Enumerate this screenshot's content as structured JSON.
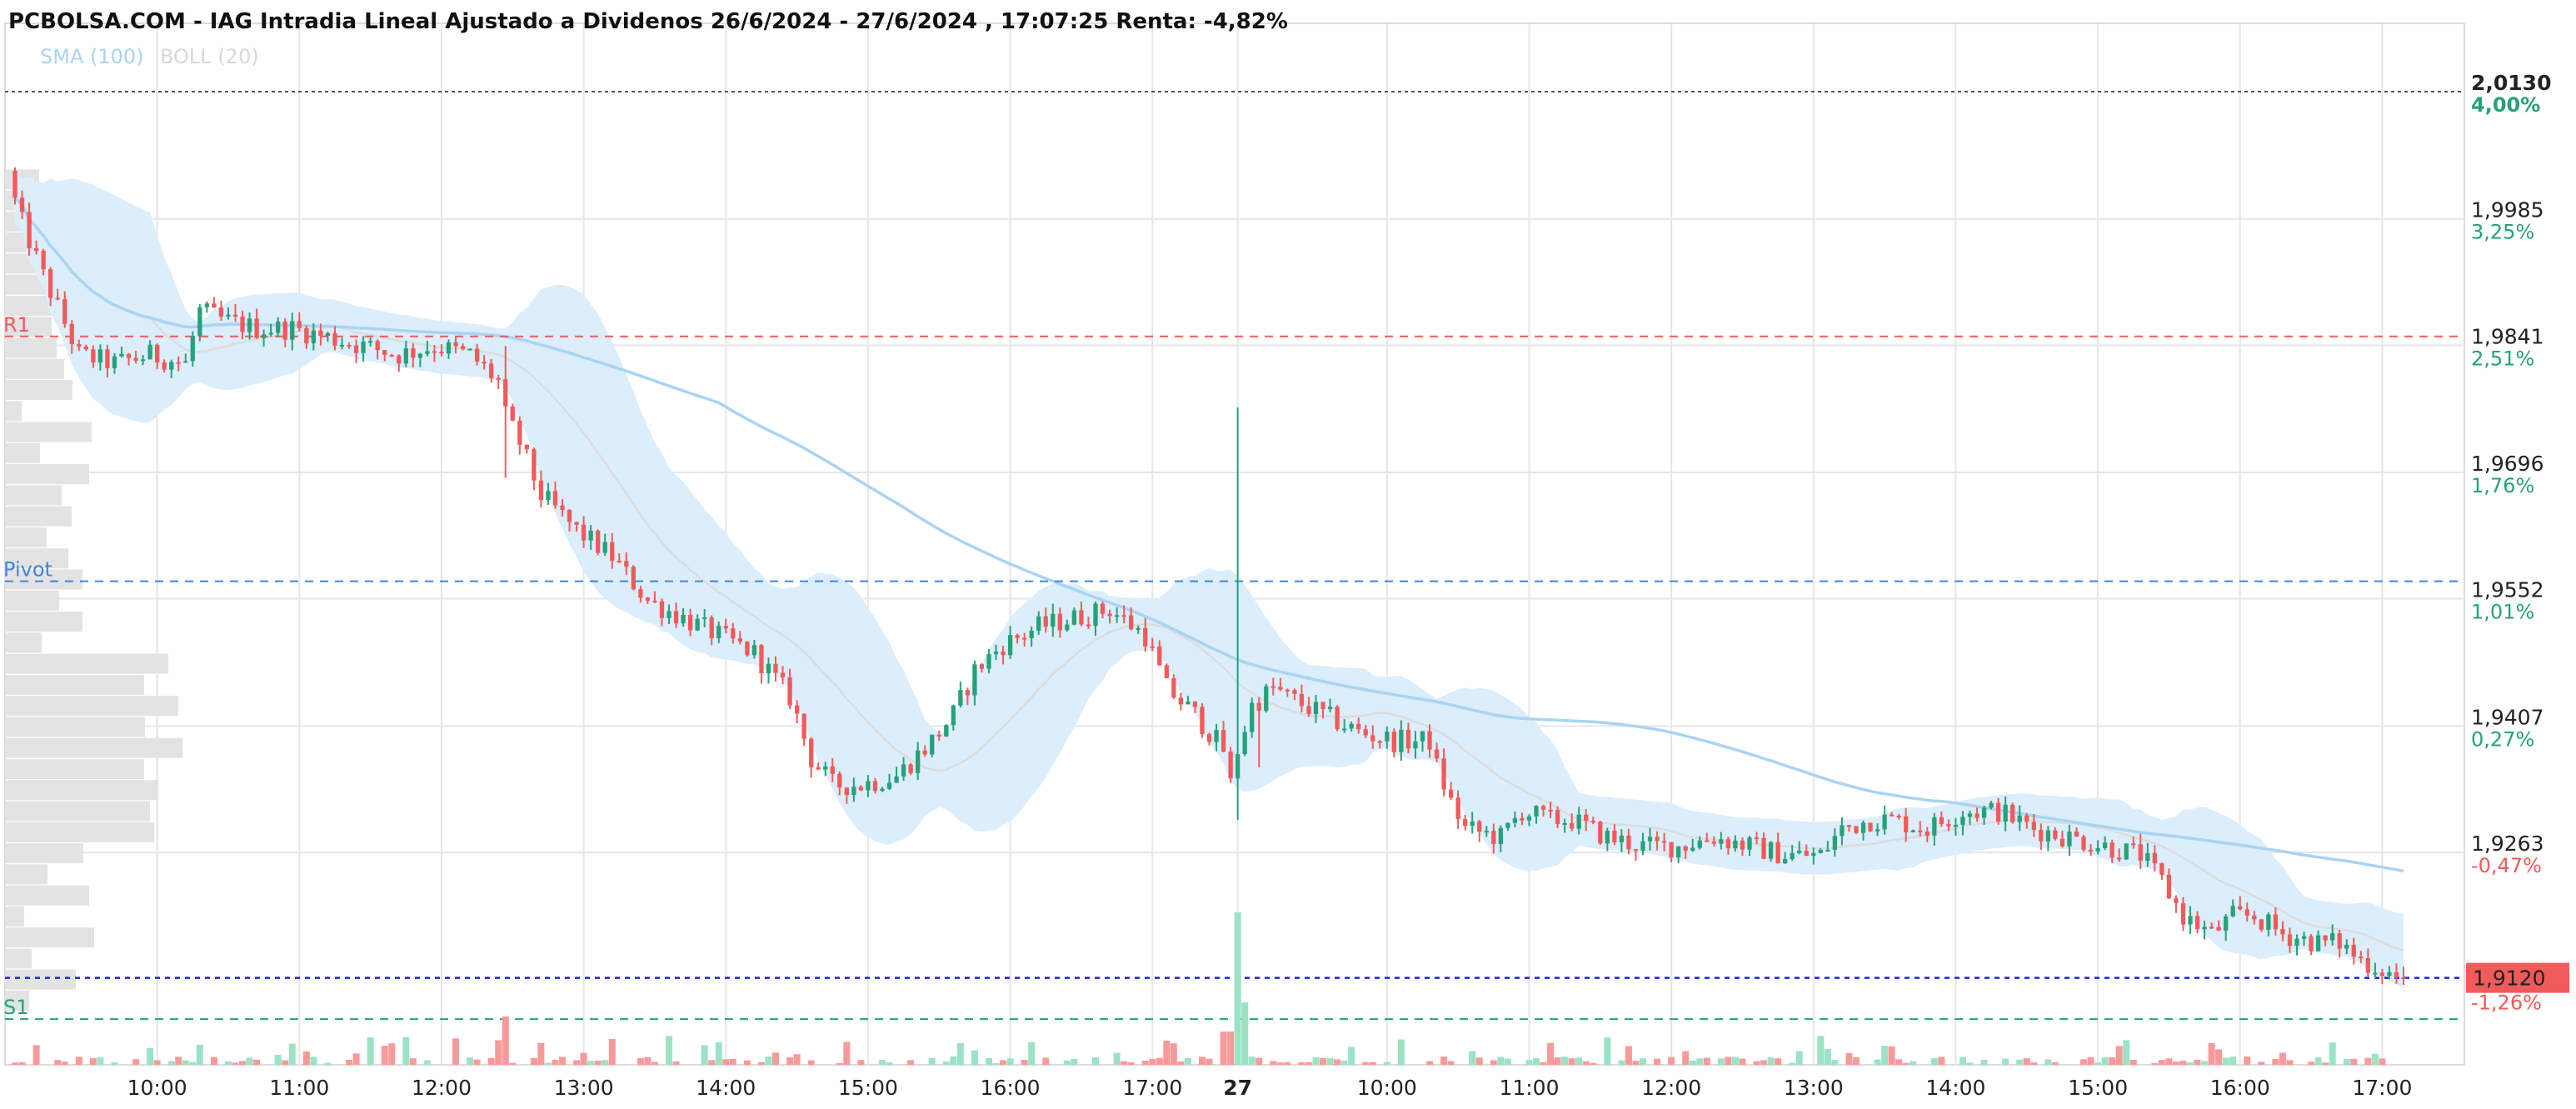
{
  "title": "PCBOLSA.COM - IAG Intradia Lineal Ajustado a Dividenos 26/6/2024 - 27/6/2024 , 17:07:25 Renta: -4,82%",
  "legend": [
    {
      "label": "SMA (100)",
      "color": "#a9d4f2"
    },
    {
      "label": "BOLL (20)",
      "color": "#d8d8d8"
    }
  ],
  "colors": {
    "up": "#26a17a",
    "down": "#f05a5a",
    "sma": "#a9d4f2",
    "boll_fill": "#dcedfb",
    "boll_mid": "#dcdcdc",
    "grid": "#e6e6e6",
    "profile": "#e3e3e3"
  },
  "chart_data": {
    "type": "candlestick",
    "y_axis": {
      "ticks": [
        {
          "value": 2.013,
          "label": "2,0130",
          "pct": "4,00%"
        },
        {
          "value": 1.9985,
          "label": "1,9985",
          "pct": "3,25%"
        },
        {
          "value": 1.9841,
          "label": "1,9841",
          "pct": "2,51%"
        },
        {
          "value": 1.9696,
          "label": "1,9696",
          "pct": "1,76%"
        },
        {
          "value": 1.9552,
          "label": "1,9552",
          "pct": "1,01%"
        },
        {
          "value": 1.9407,
          "label": "1,9407",
          "pct": "0,27%"
        },
        {
          "value": 1.9263,
          "label": "1,9263",
          "pct": "-0,47%"
        }
      ],
      "pct_last": "-1,26%",
      "range": [
        1.8915,
        2.0215
      ]
    },
    "x_axis": {
      "ticks": [
        {
          "label": "10:00",
          "idx": 20
        },
        {
          "label": "11:00",
          "idx": 40
        },
        {
          "label": "12:00",
          "idx": 60
        },
        {
          "label": "13:00",
          "idx": 80
        },
        {
          "label": "14:00",
          "idx": 100
        },
        {
          "label": "15:00",
          "idx": 120
        },
        {
          "label": "16:00",
          "idx": 140
        },
        {
          "label": "17:00",
          "idx": 160
        },
        {
          "label": "27",
          "idx": 172
        },
        {
          "label": "10:00",
          "idx": 193
        },
        {
          "label": "11:00",
          "idx": 213
        },
        {
          "label": "12:00",
          "idx": 233
        },
        {
          "label": "13:00",
          "idx": 253
        },
        {
          "label": "14:00",
          "idx": 273
        },
        {
          "label": "15:00",
          "idx": 293
        },
        {
          "label": "16:00",
          "idx": 313
        },
        {
          "label": "17:00",
          "idx": 333
        }
      ],
      "count": 337
    },
    "levels": [
      {
        "name": "R1",
        "value": 1.9851,
        "color": "#f05a5a"
      },
      {
        "name": "Pivot",
        "value": 1.9572,
        "color": "#3d86d8"
      },
      {
        "name": "S1",
        "value": 1.9073,
        "color": "#26a17a"
      }
    ],
    "last_price": {
      "value": 1.912,
      "label": "1,9120",
      "color": "#f05a5a"
    },
    "reference_value": 2.013,
    "price_path": [
      [
        0,
        2.003
      ],
      [
        2,
        1.998
      ],
      [
        5,
        1.992
      ],
      [
        10,
        1.983
      ],
      [
        15,
        1.982
      ],
      [
        20,
        1.983
      ],
      [
        25,
        1.982
      ],
      [
        27,
        1.988
      ],
      [
        30,
        1.987
      ],
      [
        35,
        1.986
      ],
      [
        40,
        1.986
      ],
      [
        45,
        1.985
      ],
      [
        50,
        1.984
      ],
      [
        55,
        1.983
      ],
      [
        60,
        1.984
      ],
      [
        65,
        1.983
      ],
      [
        69,
        1.98
      ],
      [
        70,
        1.976
      ],
      [
        72,
        1.973
      ],
      [
        75,
        1.967
      ],
      [
        80,
        1.963
      ],
      [
        85,
        1.96
      ],
      [
        90,
        1.955
      ],
      [
        95,
        1.953
      ],
      [
        100,
        1.951
      ],
      [
        105,
        1.949
      ],
      [
        110,
        1.944
      ],
      [
        113,
        1.937
      ],
      [
        116,
        1.934
      ],
      [
        120,
        1.934
      ],
      [
        125,
        1.935
      ],
      [
        130,
        1.939
      ],
      [
        133,
        1.942
      ],
      [
        136,
        1.947
      ],
      [
        140,
        1.95
      ],
      [
        145,
        1.952
      ],
      [
        150,
        1.953
      ],
      [
        155,
        1.954
      ],
      [
        160,
        1.951
      ],
      [
        163,
        1.945
      ],
      [
        167,
        1.942
      ],
      [
        171,
        1.938
      ],
      [
        172,
        1.934
      ],
      [
        173,
        1.938
      ],
      [
        175,
        1.943
      ],
      [
        178,
        1.945
      ],
      [
        180,
        1.944
      ],
      [
        185,
        1.942
      ],
      [
        190,
        1.94
      ],
      [
        195,
        1.939
      ],
      [
        200,
        1.939
      ],
      [
        201,
        1.936
      ],
      [
        203,
        1.932
      ],
      [
        205,
        1.929
      ],
      [
        210,
        1.928
      ],
      [
        213,
        1.931
      ],
      [
        217,
        1.93
      ],
      [
        220,
        1.93
      ],
      [
        225,
        1.928
      ],
      [
        230,
        1.927
      ],
      [
        235,
        1.927
      ],
      [
        240,
        1.928
      ],
      [
        245,
        1.927
      ],
      [
        250,
        1.926
      ],
      [
        255,
        1.926
      ],
      [
        258,
        1.929
      ],
      [
        262,
        1.93
      ],
      [
        265,
        1.93
      ],
      [
        270,
        1.929
      ],
      [
        275,
        1.931
      ],
      [
        280,
        1.931
      ],
      [
        285,
        1.929
      ],
      [
        290,
        1.928
      ],
      [
        295,
        1.927
      ],
      [
        300,
        1.926
      ],
      [
        303,
        1.923
      ],
      [
        306,
        1.919
      ],
      [
        310,
        1.917
      ],
      [
        313,
        1.919
      ],
      [
        316,
        1.919
      ],
      [
        320,
        1.917
      ],
      [
        325,
        1.916
      ],
      [
        328,
        1.916
      ],
      [
        331,
        1.914
      ],
      [
        334,
        1.913
      ],
      [
        336,
        1.912
      ]
    ],
    "spikes": [
      {
        "idx": 69,
        "low": 1.969,
        "high": 1.984
      },
      {
        "idx": 172,
        "low": 1.93,
        "high": 1.977
      },
      {
        "idx": 175,
        "low": 1.936,
        "high": 1.944
      }
    ]
  }
}
